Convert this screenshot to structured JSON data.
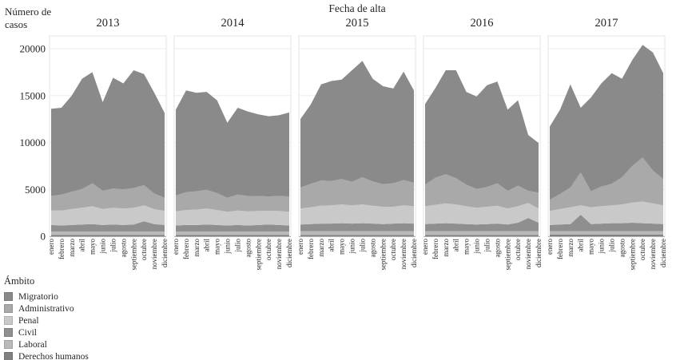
{
  "chart_data": {
    "type": "area",
    "stacked": true,
    "title": "Fecha de alta",
    "ylabel": "Número de casos",
    "legend_title": "Ámbito",
    "grid": "horizontal-light",
    "legend_position": "bottom-left",
    "facet_years": [
      "2013",
      "2014",
      "2015",
      "2016",
      "2017"
    ],
    "months": [
      "enero",
      "febrero",
      "marzo",
      "abril",
      "mayo",
      "junio",
      "julio",
      "agosto",
      "septiembre",
      "octubre",
      "noviembre",
      "diciembre"
    ],
    "y_ticks": [
      {
        "value": 0,
        "label": "0"
      },
      {
        "value": 5000,
        "label": "5000"
      },
      {
        "value": 10000,
        "label": "10000"
      },
      {
        "value": 15000,
        "label": "15000"
      },
      {
        "value": 20000,
        "label": "20000"
      }
    ],
    "ylim": [
      0,
      21350
    ],
    "stack_order_bottom_to_top": [
      "Derechos humanos",
      "Laboral",
      "Civil",
      "Penal",
      "Administrativo",
      "Migratorio"
    ],
    "series": [
      {
        "name": "Migratorio",
        "color": "#8a8a8a",
        "values": {
          "2013": [
            9300,
            9250,
            10250,
            11750,
            11850,
            9450,
            11800,
            11300,
            12550,
            11850,
            10750,
            9050
          ],
          "2014": [
            9150,
            10850,
            10500,
            10450,
            9900,
            8000,
            9250,
            9000,
            8700,
            8550,
            8600,
            8950
          ],
          "2015": [
            7300,
            8450,
            10250,
            10650,
            10600,
            11900,
            12400,
            10950,
            10450,
            10100,
            11550,
            9850
          ],
          "2016": [
            8600,
            9550,
            11100,
            11500,
            9900,
            9850,
            10850,
            10850,
            8650,
            9100,
            5950,
            5300
          ],
          "2017": [
            7800,
            9000,
            11000,
            6900,
            10000,
            11000,
            11800,
            10500,
            11300,
            12000,
            12600,
            11300
          ]
        }
      },
      {
        "name": "Administrativo",
        "color": "#a9a9a9",
        "values": {
          "2013": [
            1550,
            1700,
            1850,
            2000,
            2450,
            1950,
            2050,
            2050,
            2100,
            2150,
            1650,
            1400
          ],
          "2014": [
            1700,
            1900,
            1950,
            2000,
            1800,
            1500,
            1700,
            1650,
            1600,
            1550,
            1600,
            1650
          ],
          "2015": [
            2250,
            2500,
            2700,
            2600,
            2700,
            2500,
            2900,
            2600,
            2400,
            2500,
            2700,
            2500
          ],
          "2016": [
            2300,
            2900,
            3100,
            2800,
            2300,
            2000,
            2100,
            2400,
            1900,
            2200,
            1300,
            1700
          ],
          "2017": [
            1200,
            1600,
            2100,
            3500,
            1700,
            2100,
            2300,
            2900,
            3900,
            4700,
            3500,
            2800
          ]
        }
      },
      {
        "name": "Penal",
        "color": "#c9c9c9",
        "values": {
          "2013": [
            1550,
            1600,
            1700,
            1800,
            1900,
            1700,
            1800,
            1750,
            1800,
            1700,
            1600,
            1500
          ],
          "2014": [
            1500,
            1600,
            1650,
            1700,
            1600,
            1450,
            1550,
            1500,
            1500,
            1450,
            1500,
            1450
          ],
          "2015": [
            1700,
            1800,
            1900,
            1950,
            2000,
            1950,
            2000,
            1900,
            1850,
            1800,
            1900,
            1850
          ],
          "2016": [
            1900,
            2000,
            2100,
            2050,
            1900,
            1800,
            1850,
            1900,
            1700,
            1750,
            1600,
            1500
          ],
          "2017": [
            1500,
            1650,
            1800,
            1000,
            1800,
            1850,
            1900,
            2000,
            2150,
            2300,
            2150,
            2000
          ]
        }
      },
      {
        "name": "Civil",
        "color": "#8f8f8f",
        "values": {
          "2013": [
            700,
            650,
            700,
            750,
            800,
            700,
            750,
            700,
            750,
            1100,
            800,
            700
          ],
          "2014": [
            650,
            700,
            700,
            750,
            700,
            650,
            700,
            650,
            700,
            750,
            700,
            650
          ],
          "2015": [
            700,
            750,
            800,
            800,
            850,
            800,
            850,
            800,
            750,
            800,
            850,
            800
          ],
          "2016": [
            750,
            800,
            850,
            800,
            750,
            700,
            750,
            800,
            700,
            900,
            1400,
            900
          ],
          "2017": [
            650,
            700,
            750,
            1750,
            750,
            800,
            850,
            850,
            900,
            850,
            800,
            750
          ]
        }
      },
      {
        "name": "Laboral",
        "color": "#b9b9b9",
        "values": {
          "2013": [
            350,
            350,
            350,
            350,
            350,
            350,
            350,
            350,
            350,
            350,
            350,
            350
          ],
          "2014": [
            350,
            350,
            350,
            350,
            350,
            350,
            350,
            350,
            350,
            350,
            350,
            350
          ],
          "2015": [
            400,
            400,
            400,
            400,
            400,
            400,
            400,
            400,
            400,
            400,
            400,
            400
          ],
          "2016": [
            400,
            400,
            400,
            400,
            400,
            400,
            400,
            400,
            400,
            400,
            400,
            400
          ],
          "2017": [
            380,
            380,
            380,
            380,
            380,
            380,
            380,
            380,
            380,
            380,
            380,
            380
          ]
        }
      },
      {
        "name": "Derechos humanos",
        "color": "#808080",
        "values": {
          "2013": [
            150,
            150,
            150,
            150,
            150,
            150,
            150,
            150,
            150,
            150,
            150,
            150
          ],
          "2014": [
            150,
            150,
            150,
            150,
            150,
            150,
            150,
            150,
            150,
            150,
            150,
            150
          ],
          "2015": [
            150,
            150,
            150,
            150,
            150,
            150,
            150,
            150,
            150,
            150,
            150,
            150
          ],
          "2016": [
            150,
            150,
            150,
            150,
            150,
            150,
            150,
            150,
            150,
            150,
            150,
            150
          ],
          "2017": [
            170,
            170,
            170,
            170,
            170,
            170,
            170,
            170,
            170,
            170,
            170,
            170
          ]
        }
      }
    ],
    "panel_border_color": "#e4e4e4",
    "gridline_color": "#ebebeb",
    "axis_line_color": "#b3b3b3"
  }
}
